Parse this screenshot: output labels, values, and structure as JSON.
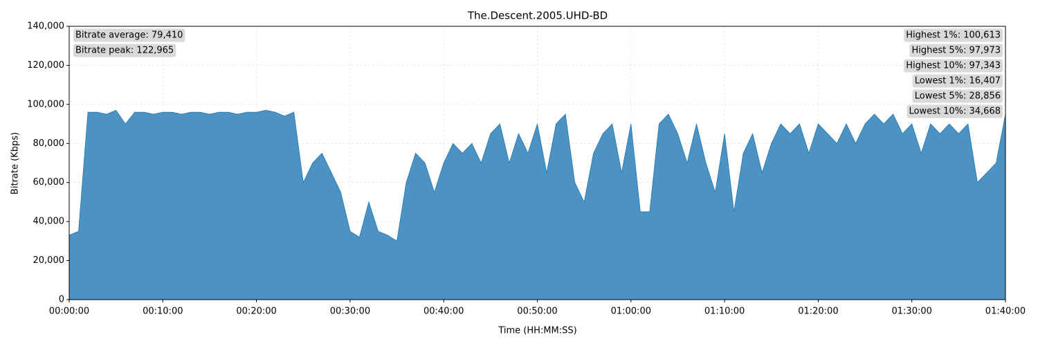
{
  "chart_data": {
    "type": "area",
    "title": "The.Descent.2005.UHD-BD",
    "xlabel": "Time (HH:MM:SS)",
    "ylabel": "Bitrate (Kbps)",
    "x": [
      0,
      60,
      120,
      180,
      240,
      300,
      360,
      420,
      480,
      540,
      600,
      660,
      720,
      780,
      840,
      900,
      960,
      1020,
      1080,
      1140,
      1200,
      1260,
      1320,
      1380,
      1440,
      1500,
      1560,
      1620,
      1680,
      1740,
      1800,
      1860,
      1920,
      1980,
      2040,
      2100,
      2160,
      2220,
      2280,
      2340,
      2400,
      2460,
      2520,
      2580,
      2640,
      2700,
      2760,
      2820,
      2880,
      2940,
      3000,
      3060,
      3120,
      3180,
      3240,
      3300,
      3360,
      3420,
      3480,
      3540,
      3600,
      3660,
      3720,
      3780,
      3840,
      3900,
      3960,
      4020,
      4080,
      4140,
      4200,
      4260,
      4320,
      4380,
      4440,
      4500,
      4560,
      4620,
      4680,
      4740,
      4800,
      4860,
      4920,
      4980,
      5040,
      5100,
      5160,
      5220,
      5280,
      5340,
      5400,
      5460,
      5520,
      5580,
      5640,
      5700,
      5760,
      5820,
      5880,
      5940,
      6000
    ],
    "series": [
      {
        "name": "Bitrate",
        "color": "#1f77b4",
        "values": [
          33000,
          35000,
          96000,
          96000,
          95000,
          97000,
          90000,
          96000,
          96000,
          95000,
          96000,
          96000,
          95000,
          96000,
          96000,
          95000,
          96000,
          96000,
          95000,
          96000,
          96000,
          97000,
          96000,
          94000,
          96000,
          60000,
          70000,
          75000,
          65000,
          55000,
          35000,
          32000,
          50000,
          35000,
          33000,
          30000,
          60000,
          75000,
          70000,
          55000,
          70000,
          80000,
          75000,
          80000,
          70000,
          85000,
          90000,
          70000,
          85000,
          75000,
          90000,
          65000,
          90000,
          95000,
          60000,
          50000,
          75000,
          85000,
          90000,
          65000,
          90000,
          45000,
          45000,
          90000,
          95000,
          85000,
          70000,
          90000,
          70000,
          55000,
          85000,
          45000,
          75000,
          85000,
          65000,
          80000,
          90000,
          85000,
          90000,
          75000,
          90000,
          85000,
          80000,
          90000,
          80000,
          90000,
          95000,
          90000,
          95000,
          85000,
          90000,
          75000,
          90000,
          85000,
          90000,
          85000,
          90000,
          60000,
          65000,
          70000,
          95000
        ]
      }
    ],
    "xlim": [
      0,
      6000
    ],
    "xticks": [
      {
        "value": 0,
        "label": "00:00:00"
      },
      {
        "value": 600,
        "label": "00:10:00"
      },
      {
        "value": 1200,
        "label": "00:20:00"
      },
      {
        "value": 1800,
        "label": "00:30:00"
      },
      {
        "value": 2400,
        "label": "00:40:00"
      },
      {
        "value": 3000,
        "label": "00:50:00"
      },
      {
        "value": 3600,
        "label": "01:00:00"
      },
      {
        "value": 4200,
        "label": "01:10:00"
      },
      {
        "value": 4800,
        "label": "01:20:00"
      },
      {
        "value": 5400,
        "label": "01:30:00"
      },
      {
        "value": 6000,
        "label": "01:40:00"
      }
    ],
    "ylim": [
      0,
      140000
    ],
    "yticks": [
      0,
      {
        "value": 20000,
        "label": "20,000"
      },
      {
        "value": 40000,
        "label": "40,000"
      },
      {
        "value": 60000,
        "label": "60,000"
      },
      {
        "value": 80000,
        "label": "80,000"
      },
      {
        "value": 100000,
        "label": "100,000"
      },
      {
        "value": 120000,
        "label": "120,000"
      },
      {
        "value": 140000,
        "label": "140,000"
      }
    ],
    "grid": true,
    "annotations_left": [
      "Bitrate average: 79,410",
      "Bitrate peak: 122,965"
    ],
    "annotations_right": [
      "Highest 1%: 100,613",
      "Highest 5%: 97,973",
      "Highest 10%: 97,343",
      "Lowest 1%: 16,407",
      "Lowest 5%: 28,856",
      "Lowest 10%: 34,668"
    ]
  }
}
